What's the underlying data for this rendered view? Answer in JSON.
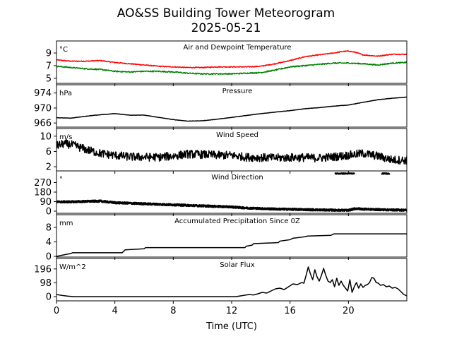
{
  "figure": {
    "title_line1": "AO&SS Building Tower Meteorogram",
    "title_line2": "2025-05-21"
  },
  "chart_data": [
    {
      "type": "line",
      "title": "Air and Dewpoint Temperature",
      "unit_label": "°C",
      "xlabel": "Time (UTC)",
      "xlim": [
        0,
        24
      ],
      "ylim": [
        4.2,
        10.9
      ],
      "yticks": [
        5,
        7,
        9
      ],
      "series": [
        {
          "color": "#ff0000",
          "x": [
            0,
            1,
            2,
            3,
            4,
            5,
            6,
            7,
            8,
            9,
            10,
            11,
            12,
            13,
            14,
            15,
            16,
            17,
            18,
            19,
            19.5,
            20,
            20.5,
            21,
            22,
            23,
            24
          ],
          "y": [
            7.9,
            7.7,
            7.7,
            7.8,
            7.5,
            7.3,
            7.1,
            6.9,
            6.8,
            6.7,
            6.7,
            6.8,
            6.8,
            6.8,
            6.9,
            7.3,
            7.8,
            8.4,
            8.7,
            9.0,
            9.2,
            9.3,
            9.1,
            8.7,
            8.5,
            8.8,
            8.8
          ],
          "noise": 0.07
        },
        {
          "color": "#008000",
          "x": [
            0,
            1,
            2,
            3,
            4,
            5,
            6,
            7,
            8,
            9,
            10,
            11,
            12,
            13,
            14,
            15,
            16,
            17,
            18,
            19,
            20,
            21,
            22,
            23,
            24
          ],
          "y": [
            6.9,
            6.7,
            6.5,
            6.4,
            6.1,
            6.0,
            6.1,
            6.1,
            6.0,
            5.8,
            5.7,
            5.7,
            5.7,
            5.8,
            5.9,
            6.3,
            6.8,
            7.0,
            7.2,
            7.4,
            7.4,
            7.3,
            7.1,
            7.4,
            7.5
          ],
          "noise": 0.09
        }
      ]
    },
    {
      "type": "line",
      "title": "Pressure",
      "unit_label": "hPa",
      "xlim": [
        0,
        24
      ],
      "ylim": [
        964.9,
        976.2
      ],
      "yticks": [
        966,
        970,
        974
      ],
      "series": [
        {
          "color": "#000000",
          "x": [
            0,
            1,
            2,
            3,
            4,
            5,
            6,
            7,
            8,
            9,
            10,
            11,
            12,
            13,
            14,
            15,
            16,
            17,
            18,
            19,
            20,
            21,
            22,
            23,
            24
          ],
          "y": [
            967.4,
            967.3,
            967.8,
            968.2,
            968.5,
            968.1,
            968.1,
            967.5,
            966.9,
            966.5,
            966.6,
            967.0,
            967.5,
            968.0,
            968.5,
            968.9,
            969.3,
            969.8,
            970.1,
            970.5,
            970.8,
            971.5,
            972.2,
            972.6,
            972.9
          ],
          "noise": 0.04
        }
      ]
    },
    {
      "type": "line",
      "title": "Wind Speed",
      "unit_label": "m/s",
      "xlim": [
        0,
        24
      ],
      "ylim": [
        0.9,
        12.0
      ],
      "yticks": [
        2,
        6,
        10
      ],
      "series": [
        {
          "color": "#000000",
          "x": [
            0,
            0.5,
            1,
            1.5,
            2,
            3,
            4,
            5,
            6,
            7,
            8,
            9,
            10,
            11,
            12,
            13,
            14,
            15,
            16,
            17,
            18,
            19,
            20,
            21,
            22,
            23,
            24
          ],
          "y": [
            7.5,
            8.0,
            7.8,
            7.2,
            6.5,
            5.5,
            5.0,
            4.6,
            4.5,
            4.5,
            4.8,
            5.3,
            5.2,
            5.0,
            5.0,
            4.5,
            4.4,
            4.3,
            4.4,
            4.4,
            4.3,
            4.6,
            5.0,
            5.5,
            4.8,
            3.8,
            3.7
          ],
          "noise": 1.1
        }
      ]
    },
    {
      "type": "scatter",
      "title": "Wind Direction",
      "unit_label": "°",
      "xlim": [
        0,
        24
      ],
      "ylim": [
        -20,
        380
      ],
      "yticks": [
        0,
        90,
        180,
        270
      ],
      "series": [
        {
          "color": "#000000",
          "x": [
            0,
            1,
            2,
            3,
            4,
            5,
            6,
            7,
            8,
            9,
            10,
            11,
            12,
            13,
            14,
            15,
            16,
            17,
            18,
            19,
            20,
            20.5,
            21,
            22,
            23,
            24
          ],
          "y": [
            88,
            88,
            92,
            95,
            80,
            75,
            70,
            65,
            60,
            55,
            50,
            45,
            40,
            30,
            25,
            20,
            18,
            15,
            12,
            10,
            8,
            25,
            20,
            15,
            12,
            10
          ],
          "noise": 9
        },
        {
          "color": "#000000",
          "x_ranges": [
            [
              19.1,
              20.4
            ],
            [
              22.3,
              22.8
            ]
          ],
          "y": 355,
          "noise": 5
        }
      ]
    },
    {
      "type": "line",
      "title": "Accumulated Precipitation Since 0Z",
      "unit_label": "mm",
      "xlim": [
        0,
        24
      ],
      "ylim": [
        -0.2,
        11.5
      ],
      "yticks": [
        0,
        4,
        8
      ],
      "series": [
        {
          "color": "#000000",
          "x": [
            0,
            0.5,
            1,
            1.1,
            4.5,
            4.6,
            4.7,
            6,
            6.1,
            12.9,
            13,
            13.4,
            13.5,
            15.2,
            15.3,
            16,
            16.2,
            17,
            17.2,
            18.8,
            19,
            24
          ],
          "y": [
            0,
            0.4,
            0.8,
            1.0,
            1.0,
            1.4,
            1.8,
            2.1,
            2.4,
            2.4,
            2.8,
            3.1,
            3.5,
            3.8,
            4.2,
            4.6,
            5.0,
            5.4,
            5.6,
            5.8,
            6.2,
            6.2
          ]
        }
      ]
    },
    {
      "type": "line",
      "title": "Solar Flux",
      "unit_label": "W/m^2",
      "xlim": [
        0,
        24
      ],
      "ylim": [
        -30,
        270
      ],
      "yticks": [
        0,
        98,
        196
      ],
      "series": [
        {
          "color": "#000000",
          "x": [
            0,
            0.4,
            0.8,
            1.2,
            12.3,
            12.6,
            12.9,
            13.2,
            13.5,
            13.8,
            14.1,
            14.4,
            14.7,
            15.0,
            15.3,
            15.6,
            15.9,
            16.2,
            16.5,
            16.8,
            16.95,
            17.1,
            17.25,
            17.4,
            17.55,
            17.7,
            17.85,
            18.0,
            18.15,
            18.3,
            18.45,
            18.6,
            18.75,
            18.9,
            19.05,
            19.2,
            19.35,
            19.5,
            19.65,
            19.8,
            19.95,
            20.1,
            20.25,
            20.4,
            20.55,
            20.7,
            20.85,
            21.0,
            21.15,
            21.3,
            21.45,
            21.6,
            21.75,
            21.9,
            22.05,
            22.2,
            22.4,
            22.6,
            22.8,
            23.0,
            23.2,
            23.4,
            23.6,
            23.8,
            24.0
          ],
          "y": [
            15,
            8,
            3,
            0,
            0,
            5,
            10,
            15,
            12,
            20,
            30,
            25,
            40,
            55,
            60,
            50,
            70,
            90,
            85,
            100,
            95,
            150,
            210,
            160,
            120,
            190,
            140,
            110,
            150,
            200,
            150,
            110,
            100,
            120,
            70,
            130,
            80,
            110,
            80,
            60,
            40,
            120,
            30,
            70,
            100,
            60,
            90,
            65,
            80,
            85,
            100,
            135,
            130,
            100,
            95,
            80,
            85,
            70,
            75,
            60,
            65,
            55,
            35,
            15,
            5
          ]
        }
      ]
    }
  ],
  "xticks": [
    0,
    4,
    8,
    12,
    16,
    20
  ]
}
